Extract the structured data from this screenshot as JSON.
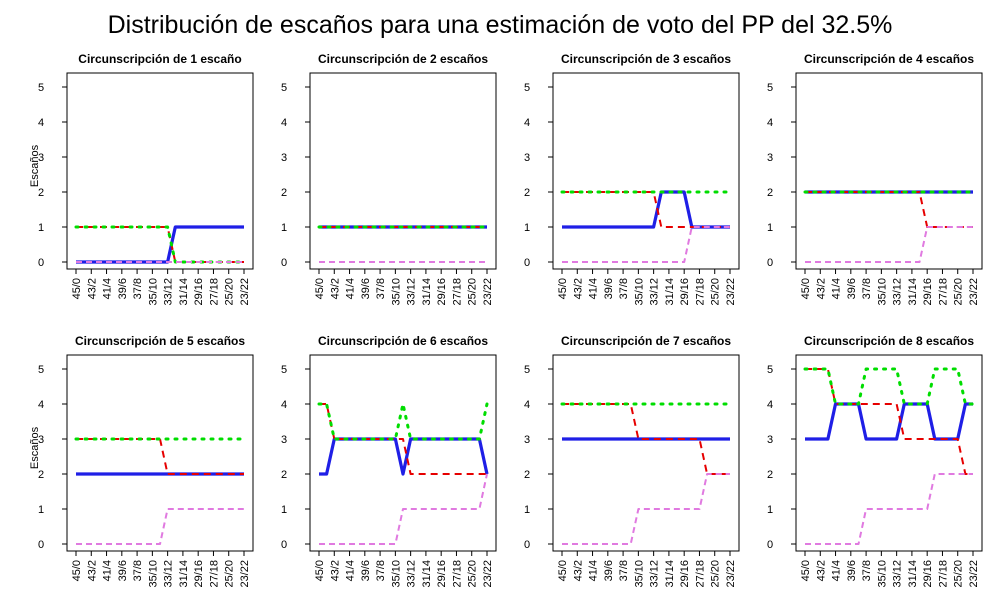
{
  "chart_data": {
    "type": "line",
    "title": "Distribución de escaños para una estimación de voto del PP del 32.5%",
    "ylabel": "Escaños",
    "ylim": [
      0,
      5
    ],
    "yticks": [
      "0",
      "1",
      "2",
      "3",
      "4",
      "5"
    ],
    "x": [
      "45/0",
      "44/1",
      "43/2",
      "42/3",
      "41/4",
      "40/5",
      "39/6",
      "38/7",
      "37/8",
      "36/9",
      "35/10",
      "34/11",
      "33/12",
      "32/13",
      "31/14",
      "30/15",
      "29/16",
      "28/17",
      "27/18",
      "26/19",
      "25/20",
      "24/21",
      "23/22"
    ],
    "xticklabels": [
      "45/0",
      "43/2",
      "41/4",
      "39/6",
      "37/8",
      "35/10",
      "33/12",
      "31/14",
      "29/16",
      "27/18",
      "25/20",
      "23/22"
    ],
    "series_styles": [
      {
        "id": "blue",
        "color": "#1f1fe6",
        "dash": "none",
        "width": 3.2
      },
      {
        "id": "red",
        "color": "#e60000",
        "dash": "7,5",
        "width": 2
      },
      {
        "id": "green",
        "color": "#00dd00",
        "dash": "2,7",
        "width": 3
      },
      {
        "id": "violet",
        "color": "#e07ae0",
        "dash": "6,4",
        "width": 2
      }
    ],
    "panels": [
      {
        "title": "Circunscripción de 1 escaño",
        "series": [
          {
            "name": "blue",
            "values": [
              0,
              0,
              0,
              0,
              0,
              0,
              0,
              0,
              0,
              0,
              0,
              0,
              0,
              1,
              1,
              1,
              1,
              1,
              1,
              1,
              1,
              1,
              1
            ]
          },
          {
            "name": "red",
            "values": [
              1,
              1,
              1,
              1,
              1,
              1,
              1,
              1,
              1,
              1,
              1,
              1,
              1,
              0,
              0,
              0,
              0,
              0,
              0,
              0,
              0,
              0,
              0
            ]
          },
          {
            "name": "green",
            "values": [
              1,
              1,
              1,
              1,
              1,
              1,
              1,
              1,
              1,
              1,
              1,
              1,
              1,
              0,
              0,
              0,
              0,
              0,
              0,
              0,
              0,
              0,
              0
            ]
          },
          {
            "name": "violet",
            "values": [
              0,
              0,
              0,
              0,
              0,
              0,
              0,
              0,
              0,
              0,
              0,
              0,
              0,
              0,
              0,
              0,
              0,
              0,
              0,
              0,
              0,
              0,
              0
            ]
          }
        ]
      },
      {
        "title": "Circunscripción de 2 escaños",
        "series": [
          {
            "name": "blue",
            "values": [
              1,
              1,
              1,
              1,
              1,
              1,
              1,
              1,
              1,
              1,
              1,
              1,
              1,
              1,
              1,
              1,
              1,
              1,
              1,
              1,
              1,
              1,
              1
            ]
          },
          {
            "name": "red",
            "values": [
              1,
              1,
              1,
              1,
              1,
              1,
              1,
              1,
              1,
              1,
              1,
              1,
              1,
              1,
              1,
              1,
              1,
              1,
              1,
              1,
              1,
              1,
              1
            ]
          },
          {
            "name": "green",
            "values": [
              1,
              1,
              1,
              1,
              1,
              1,
              1,
              1,
              1,
              1,
              1,
              1,
              1,
              1,
              1,
              1,
              1,
              1,
              1,
              1,
              1,
              1,
              1
            ]
          },
          {
            "name": "violet",
            "values": [
              0,
              0,
              0,
              0,
              0,
              0,
              0,
              0,
              0,
              0,
              0,
              0,
              0,
              0,
              0,
              0,
              0,
              0,
              0,
              0,
              0,
              0,
              0
            ]
          }
        ]
      },
      {
        "title": "Circunscripción de 3 escaños",
        "series": [
          {
            "name": "blue",
            "values": [
              1,
              1,
              1,
              1,
              1,
              1,
              1,
              1,
              1,
              1,
              1,
              1,
              1,
              2,
              2,
              2,
              2,
              1,
              1,
              1,
              1,
              1,
              1
            ]
          },
          {
            "name": "red",
            "values": [
              2,
              2,
              2,
              2,
              2,
              2,
              2,
              2,
              2,
              2,
              2,
              2,
              2,
              1,
              1,
              1,
              1,
              1,
              1,
              1,
              1,
              1,
              1
            ]
          },
          {
            "name": "green",
            "values": [
              2,
              2,
              2,
              2,
              2,
              2,
              2,
              2,
              2,
              2,
              2,
              2,
              2,
              2,
              2,
              2,
              2,
              2,
              2,
              2,
              2,
              2,
              2
            ]
          },
          {
            "name": "violet",
            "values": [
              0,
              0,
              0,
              0,
              0,
              0,
              0,
              0,
              0,
              0,
              0,
              0,
              0,
              0,
              0,
              0,
              0,
              1,
              1,
              1,
              1,
              1,
              1
            ]
          }
        ]
      },
      {
        "title": "Circunscripción de 4 escaños",
        "series": [
          {
            "name": "blue",
            "values": [
              2,
              2,
              2,
              2,
              2,
              2,
              2,
              2,
              2,
              2,
              2,
              2,
              2,
              2,
              2,
              2,
              2,
              2,
              2,
              2,
              2,
              2,
              2
            ]
          },
          {
            "name": "red",
            "values": [
              2,
              2,
              2,
              2,
              2,
              2,
              2,
              2,
              2,
              2,
              2,
              2,
              2,
              2,
              2,
              2,
              1,
              1,
              1,
              1,
              1,
              1,
              1
            ]
          },
          {
            "name": "green",
            "values": [
              2,
              2,
              2,
              2,
              2,
              2,
              2,
              2,
              2,
              2,
              2,
              2,
              2,
              2,
              2,
              2,
              2,
              2,
              2,
              2,
              2,
              2,
              2
            ]
          },
          {
            "name": "violet",
            "values": [
              0,
              0,
              0,
              0,
              0,
              0,
              0,
              0,
              0,
              0,
              0,
              0,
              0,
              0,
              0,
              0,
              1,
              1,
              1,
              1,
              1,
              1,
              1
            ]
          }
        ]
      },
      {
        "title": "Circunscripción de 5 escaños",
        "series": [
          {
            "name": "blue",
            "values": [
              2,
              2,
              2,
              2,
              2,
              2,
              2,
              2,
              2,
              2,
              2,
              2,
              2,
              2,
              2,
              2,
              2,
              2,
              2,
              2,
              2,
              2,
              2
            ]
          },
          {
            "name": "red",
            "values": [
              3,
              3,
              3,
              3,
              3,
              3,
              3,
              3,
              3,
              3,
              3,
              3,
              2,
              2,
              2,
              2,
              2,
              2,
              2,
              2,
              2,
              2,
              2
            ]
          },
          {
            "name": "green",
            "values": [
              3,
              3,
              3,
              3,
              3,
              3,
              3,
              3,
              3,
              3,
              3,
              3,
              3,
              3,
              3,
              3,
              3,
              3,
              3,
              3,
              3,
              3,
              3
            ]
          },
          {
            "name": "violet",
            "values": [
              0,
              0,
              0,
              0,
              0,
              0,
              0,
              0,
              0,
              0,
              0,
              0,
              1,
              1,
              1,
              1,
              1,
              1,
              1,
              1,
              1,
              1,
              1
            ]
          }
        ]
      },
      {
        "title": "Circunscripción de 6 escaños",
        "series": [
          {
            "name": "blue",
            "values": [
              2,
              2,
              3,
              3,
              3,
              3,
              3,
              3,
              3,
              3,
              3,
              2,
              3,
              3,
              3,
              3,
              3,
              3,
              3,
              3,
              3,
              3,
              2
            ]
          },
          {
            "name": "red",
            "values": [
              4,
              4,
              3,
              3,
              3,
              3,
              3,
              3,
              3,
              3,
              3,
              3,
              2,
              2,
              2,
              2,
              2,
              2,
              2,
              2,
              2,
              2,
              2
            ]
          },
          {
            "name": "green",
            "values": [
              4,
              4,
              3,
              3,
              3,
              3,
              3,
              3,
              3,
              3,
              3,
              4,
              3,
              3,
              3,
              3,
              3,
              3,
              3,
              3,
              3,
              3,
              4
            ]
          },
          {
            "name": "violet",
            "values": [
              0,
              0,
              0,
              0,
              0,
              0,
              0,
              0,
              0,
              0,
              0,
              1,
              1,
              1,
              1,
              1,
              1,
              1,
              1,
              1,
              1,
              1,
              2
            ]
          }
        ]
      },
      {
        "title": "Circunscripción de 7 escaños",
        "series": [
          {
            "name": "blue",
            "values": [
              3,
              3,
              3,
              3,
              3,
              3,
              3,
              3,
              3,
              3,
              3,
              3,
              3,
              3,
              3,
              3,
              3,
              3,
              3,
              3,
              3,
              3,
              3
            ]
          },
          {
            "name": "red",
            "values": [
              4,
              4,
              4,
              4,
              4,
              4,
              4,
              4,
              4,
              4,
              3,
              3,
              3,
              3,
              3,
              3,
              3,
              3,
              3,
              2,
              2,
              2,
              2
            ]
          },
          {
            "name": "green",
            "values": [
              4,
              4,
              4,
              4,
              4,
              4,
              4,
              4,
              4,
              4,
              4,
              4,
              4,
              4,
              4,
              4,
              4,
              4,
              4,
              4,
              4,
              4,
              4
            ]
          },
          {
            "name": "violet",
            "values": [
              0,
              0,
              0,
              0,
              0,
              0,
              0,
              0,
              0,
              0,
              1,
              1,
              1,
              1,
              1,
              1,
              1,
              1,
              1,
              2,
              2,
              2,
              2
            ]
          }
        ]
      },
      {
        "title": "Circunscripción de 8 escaños",
        "series": [
          {
            "name": "blue",
            "values": [
              3,
              3,
              3,
              3,
              4,
              4,
              4,
              4,
              3,
              3,
              3,
              3,
              3,
              4,
              4,
              4,
              4,
              3,
              3,
              3,
              3,
              4,
              4
            ]
          },
          {
            "name": "red",
            "values": [
              5,
              5,
              5,
              5,
              4,
              4,
              4,
              4,
              4,
              4,
              4,
              4,
              4,
              3,
              3,
              3,
              3,
              3,
              3,
              3,
              3,
              2,
              2
            ]
          },
          {
            "name": "green",
            "values": [
              5,
              5,
              5,
              5,
              4,
              4,
              4,
              4,
              5,
              5,
              5,
              5,
              5,
              4,
              4,
              4,
              4,
              5,
              5,
              5,
              5,
              4,
              4
            ]
          },
          {
            "name": "violet",
            "values": [
              0,
              0,
              0,
              0,
              0,
              0,
              0,
              0,
              1,
              1,
              1,
              1,
              1,
              1,
              1,
              1,
              1,
              2,
              2,
              2,
              2,
              2,
              2
            ]
          }
        ]
      }
    ]
  }
}
